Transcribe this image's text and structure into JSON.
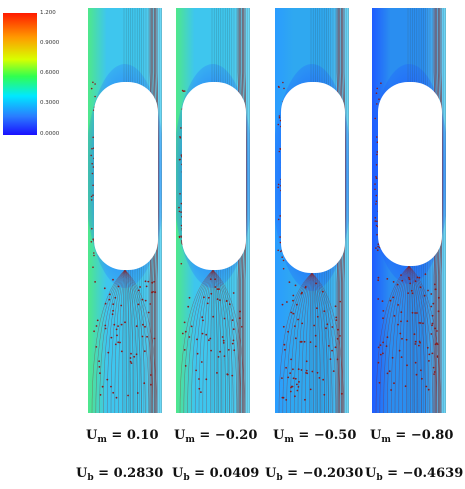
{
  "colorbar": {
    "ticks": [
      "1.200",
      "0.9000",
      "0.6000",
      "0.3000",
      "0.0000"
    ],
    "colors": [
      "#ff0000",
      "#ff8000",
      "#ffff00",
      "#00ff00",
      "#00ffff",
      "#0000ff"
    ]
  },
  "panels": [
    {
      "um_sub": "m",
      "um_value": "= 0.10",
      "ub_sub": "b",
      "ub_value": "= 0.2830"
    },
    {
      "um_sub": "m",
      "um_value": "= −0.20",
      "ub_sub": "b",
      "ub_value": "= 0.0409"
    },
    {
      "um_sub": "m",
      "um_value": "= −0.50",
      "ub_sub": "b",
      "ub_value": "= −0.2030"
    },
    {
      "um_sub": "m",
      "um_value": "= −0.80",
      "ub_sub": "b",
      "ub_value": "= −0.4639"
    }
  ],
  "label_letter": "U",
  "colors": {
    "field_light": "#3ec6ee",
    "field_blue": "#1f5cff",
    "field_green": "#4ee88a",
    "streamline": "#8b1a1a",
    "bubble": "#ffffff"
  }
}
